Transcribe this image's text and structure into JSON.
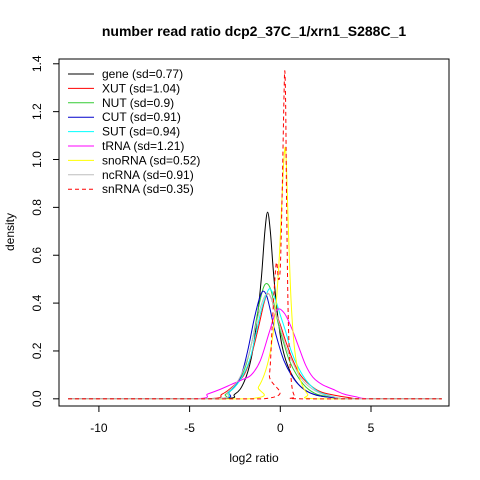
{
  "chart_data": {
    "type": "line",
    "title": "number read ratio dcp2_37C_1/xrn1_S288C_1",
    "xlabel": "log2 ratio",
    "ylabel": "density",
    "xlim": [
      -12.2,
      9.3
    ],
    "ylim": [
      -0.03,
      1.42
    ],
    "x_ticks": [
      -10,
      -5,
      0,
      5
    ],
    "x_tick_labels": [
      "-10",
      "-5",
      "0",
      "5"
    ],
    "y_ticks": [
      0.0,
      0.2,
      0.4,
      0.6,
      0.8,
      1.0,
      1.2,
      1.4
    ],
    "y_tick_labels": [
      "0.0",
      "0.2",
      "0.4",
      "0.6",
      "0.8",
      "1.0",
      "1.2",
      "1.4"
    ],
    "grid": false,
    "legend_position": "top-left",
    "series": [
      {
        "name": "gene (sd=0.77)",
        "color": "#000000",
        "dash": "solid",
        "x": [
          -11.7,
          -3.5,
          -2.5,
          -2.0,
          -1.6,
          -1.3,
          -1.05,
          -0.85,
          -0.7,
          -0.55,
          -0.4,
          -0.25,
          -0.1,
          0.1,
          0.4,
          0.8,
          1.3,
          2.0,
          3.0,
          4.0,
          8.9
        ],
        "y": [
          0.0,
          0.0,
          0.02,
          0.07,
          0.17,
          0.32,
          0.5,
          0.7,
          0.78,
          0.7,
          0.55,
          0.42,
          0.32,
          0.22,
          0.14,
          0.08,
          0.04,
          0.015,
          0.005,
          0.0,
          0.0
        ]
      },
      {
        "name": "XUT (sd=1.04)",
        "color": "#ff0000",
        "dash": "solid",
        "x": [
          -11.7,
          -4.2,
          -3.2,
          -2.5,
          -2.0,
          -1.6,
          -1.2,
          -0.9,
          -0.7,
          -0.5,
          -0.3,
          0.0,
          0.3,
          0.7,
          1.1,
          1.6,
          2.2,
          3.0,
          3.8,
          4.6,
          8.9
        ],
        "y": [
          0.0,
          0.0,
          0.02,
          0.06,
          0.1,
          0.18,
          0.3,
          0.4,
          0.44,
          0.42,
          0.37,
          0.31,
          0.24,
          0.16,
          0.1,
          0.06,
          0.03,
          0.015,
          0.005,
          0.0,
          0.0
        ]
      },
      {
        "name": "NUT (sd=0.9)",
        "color": "#33cc33",
        "dash": "solid",
        "x": [
          -11.7,
          -3.8,
          -3.0,
          -2.4,
          -1.9,
          -1.5,
          -1.15,
          -0.9,
          -0.7,
          -0.5,
          -0.3,
          -0.1,
          0.2,
          0.5,
          0.9,
          1.4,
          2.0,
          2.8,
          3.6,
          8.9
        ],
        "y": [
          0.0,
          0.0,
          0.02,
          0.06,
          0.14,
          0.26,
          0.4,
          0.47,
          0.48,
          0.45,
          0.38,
          0.31,
          0.23,
          0.16,
          0.1,
          0.05,
          0.02,
          0.008,
          0.0,
          0.0
        ]
      },
      {
        "name": "CUT (sd=0.91)",
        "color": "#0000cc",
        "dash": "solid",
        "x": [
          -11.7,
          -3.6,
          -2.8,
          -2.2,
          -1.8,
          -1.45,
          -1.15,
          -0.95,
          -0.75,
          -0.55,
          -0.35,
          -0.1,
          0.2,
          0.6,
          1.0,
          1.5,
          2.2,
          3.0,
          3.8,
          8.9
        ],
        "y": [
          0.0,
          0.0,
          0.03,
          0.09,
          0.2,
          0.33,
          0.42,
          0.45,
          0.43,
          0.37,
          0.3,
          0.23,
          0.16,
          0.1,
          0.06,
          0.03,
          0.012,
          0.004,
          0.0,
          0.0
        ]
      },
      {
        "name": "SUT (sd=0.94)",
        "color": "#00ffff",
        "dash": "solid",
        "x": [
          -11.7,
          -3.7,
          -2.8,
          -2.2,
          -1.7,
          -1.35,
          -1.05,
          -0.8,
          -0.6,
          -0.4,
          -0.2,
          0.0,
          0.3,
          0.6,
          1.0,
          1.5,
          2.1,
          2.9,
          3.8,
          8.9
        ],
        "y": [
          0.0,
          0.0,
          0.03,
          0.08,
          0.16,
          0.27,
          0.37,
          0.43,
          0.46,
          0.44,
          0.4,
          0.35,
          0.28,
          0.2,
          0.13,
          0.07,
          0.03,
          0.01,
          0.0,
          0.0
        ]
      },
      {
        "name": "tRNA (sd=1.21)",
        "color": "#ff00ff",
        "dash": "solid",
        "x": [
          -11.7,
          -4.8,
          -4.0,
          -3.3,
          -2.7,
          -2.1,
          -1.6,
          -1.1,
          -0.6,
          -0.2,
          0.2,
          0.6,
          1.0,
          1.4,
          1.8,
          2.3,
          2.9,
          3.5,
          4.2,
          5.0,
          8.9
        ],
        "y": [
          0.0,
          0.0,
          0.02,
          0.04,
          0.06,
          0.08,
          0.1,
          0.16,
          0.28,
          0.37,
          0.36,
          0.3,
          0.22,
          0.14,
          0.09,
          0.06,
          0.04,
          0.02,
          0.008,
          0.0,
          0.0
        ]
      },
      {
        "name": "snoRNA (sd=0.52)",
        "color": "#ffff00",
        "dash": "solid",
        "x": [
          -11.7,
          -1.8,
          -1.2,
          -0.8,
          -0.5,
          -0.25,
          -0.05,
          0.1,
          0.2,
          0.28,
          0.35,
          0.45,
          0.6,
          0.8,
          1.1,
          1.5,
          2.0,
          8.9
        ],
        "y": [
          0.0,
          0.0,
          0.05,
          0.12,
          0.22,
          0.38,
          0.6,
          0.85,
          1.0,
          1.05,
          0.95,
          0.7,
          0.4,
          0.2,
          0.08,
          0.02,
          0.0,
          0.0
        ]
      },
      {
        "name": "ncRNA (sd=0.91)",
        "color": "#bebebe",
        "dash": "solid",
        "x": [
          -11.7,
          -3.7,
          -2.9,
          -2.3,
          -1.8,
          -1.4,
          -1.1,
          -0.85,
          -0.65,
          -0.45,
          -0.25,
          0.0,
          0.3,
          0.7,
          1.1,
          1.6,
          2.3,
          3.1,
          3.9,
          8.9
        ],
        "y": [
          0.0,
          0.0,
          0.03,
          0.08,
          0.17,
          0.29,
          0.38,
          0.43,
          0.44,
          0.41,
          0.36,
          0.3,
          0.22,
          0.15,
          0.09,
          0.05,
          0.02,
          0.006,
          0.0,
          0.0
        ]
      },
      {
        "name": "snRNA (sd=0.35)",
        "color": "#ff0000",
        "dash": "dashed",
        "x": [
          -11.7,
          -0.9,
          -0.6,
          -0.45,
          -0.3,
          -0.2,
          -0.1,
          0.0,
          0.1,
          0.2,
          0.25,
          0.3,
          0.35,
          0.45,
          0.6,
          0.8,
          1.2,
          8.9
        ],
        "y": [
          0.0,
          0.0,
          0.1,
          0.3,
          0.5,
          0.57,
          0.5,
          0.55,
          0.85,
          1.25,
          1.37,
          1.2,
          0.8,
          0.3,
          0.08,
          0.01,
          0.0,
          0.0
        ]
      }
    ]
  }
}
